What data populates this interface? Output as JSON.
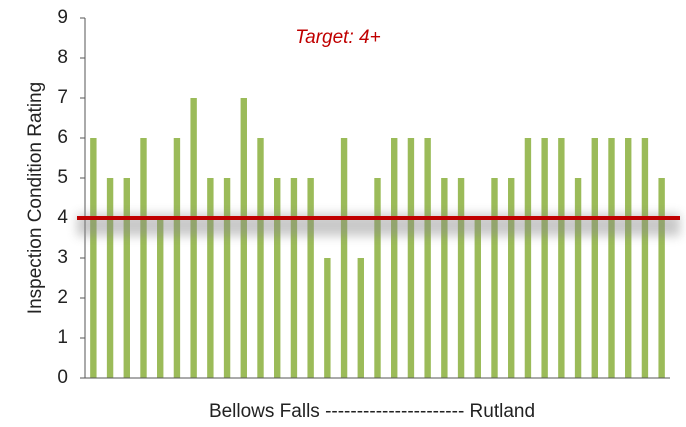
{
  "chart_data": {
    "type": "bar",
    "y_label": "Inspection Condition Rating",
    "x_label": "Bellows Falls ---------------------- Rutland",
    "annotation": "Target: 4+",
    "target": 4,
    "target_color": "#c00000",
    "categories": [
      null,
      null,
      null,
      null,
      null,
      null,
      null,
      null,
      null,
      null,
      null,
      null,
      null,
      null,
      null,
      null,
      null,
      null,
      null,
      null,
      null,
      null,
      null,
      null,
      null,
      null,
      null,
      null,
      null,
      null,
      null,
      null,
      null,
      null,
      null
    ],
    "values": [
      6,
      5,
      5,
      6,
      4,
      6,
      7,
      5,
      5,
      7,
      6,
      5,
      5,
      5,
      3,
      6,
      3,
      5,
      6,
      6,
      6,
      5,
      5,
      4,
      5,
      5,
      6,
      6,
      6,
      5,
      6,
      6,
      6,
      6,
      5
    ],
    "color": "#9bbb59",
    "ylim": [
      0,
      9
    ],
    "yticks": [
      0,
      1,
      2,
      3,
      4,
      5,
      6,
      7,
      8,
      9
    ],
    "grid": false
  }
}
